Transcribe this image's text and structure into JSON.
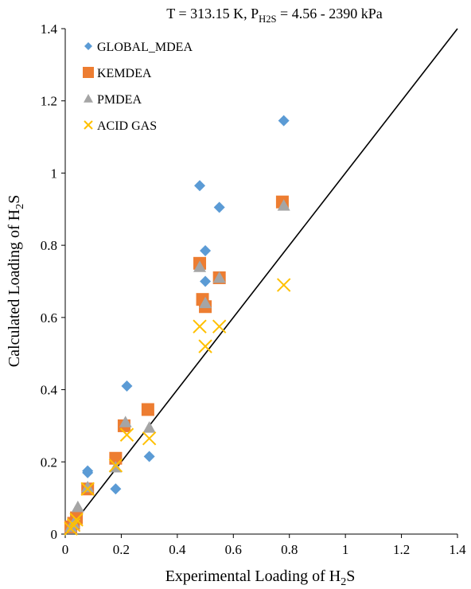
{
  "chart_data": {
    "type": "scatter",
    "title": {
      "prefix": "T = 313.15  K, P",
      "sub": "H2S",
      "suffix": " = 4.56  - 2390  kPa"
    },
    "xlabel": {
      "prefix": "Experimental  Loading of H",
      "sub": "2",
      "suffix": "S"
    },
    "ylabel": {
      "prefix": "Calculated Loading of H",
      "sub": "2",
      "suffix": "S"
    },
    "xlim": [
      0,
      1.4
    ],
    "ylim": [
      0,
      1.4
    ],
    "x_ticks": [
      "0",
      "0.2",
      "0.4",
      "0.6",
      "0.8",
      "1",
      "1.2",
      "1.4"
    ],
    "y_ticks": [
      "0",
      "0.2",
      "0.4",
      "0.6",
      "0.8",
      "1",
      "1.2",
      "1.4"
    ],
    "grid": false,
    "legend_position": "top-left",
    "reference_line": {
      "x": [
        0,
        1.4
      ],
      "y": [
        0,
        1.4
      ],
      "color": "#000000"
    },
    "series": [
      {
        "name": "GLOBAL_MDEA",
        "marker": "diamond",
        "color": "#5B9BD5",
        "points": [
          [
            0.02,
            0.02
          ],
          [
            0.03,
            0.03
          ],
          [
            0.04,
            0.04
          ],
          [
            0.08,
            0.175
          ],
          [
            0.08,
            0.17
          ],
          [
            0.18,
            0.125
          ],
          [
            0.22,
            0.41
          ],
          [
            0.3,
            0.215
          ],
          [
            0.48,
            0.965
          ],
          [
            0.5,
            0.785
          ],
          [
            0.5,
            0.7
          ],
          [
            0.55,
            0.905
          ],
          [
            0.78,
            1.145
          ]
        ]
      },
      {
        "name": "KEMDEA",
        "marker": "square",
        "color": "#ED7D31",
        "points": [
          [
            0.02,
            0.02
          ],
          [
            0.03,
            0.03
          ],
          [
            0.04,
            0.045
          ],
          [
            0.08,
            0.125
          ],
          [
            0.18,
            0.21
          ],
          [
            0.21,
            0.3
          ],
          [
            0.295,
            0.345
          ],
          [
            0.48,
            0.75
          ],
          [
            0.49,
            0.65
          ],
          [
            0.5,
            0.63
          ],
          [
            0.55,
            0.71
          ],
          [
            0.775,
            0.92
          ]
        ]
      },
      {
        "name": "PMDEA",
        "marker": "triangle",
        "color": "#A5A5A5",
        "points": [
          [
            0.02,
            0.02
          ],
          [
            0.03,
            0.03
          ],
          [
            0.045,
            0.075
          ],
          [
            0.08,
            0.13
          ],
          [
            0.18,
            0.185
          ],
          [
            0.215,
            0.31
          ],
          [
            0.3,
            0.295
          ],
          [
            0.48,
            0.74
          ],
          [
            0.5,
            0.64
          ],
          [
            0.55,
            0.71
          ],
          [
            0.78,
            0.91
          ]
        ]
      },
      {
        "name": "ACID GAS",
        "marker": "x",
        "color": "#FFC000",
        "points": [
          [
            0.02,
            0.015
          ],
          [
            0.03,
            0.025
          ],
          [
            0.04,
            0.04
          ],
          [
            0.08,
            0.125
          ],
          [
            0.18,
            0.19
          ],
          [
            0.22,
            0.275
          ],
          [
            0.3,
            0.265
          ],
          [
            0.48,
            0.575
          ],
          [
            0.5,
            0.52
          ],
          [
            0.55,
            0.575
          ],
          [
            0.78,
            0.69
          ]
        ]
      }
    ]
  }
}
